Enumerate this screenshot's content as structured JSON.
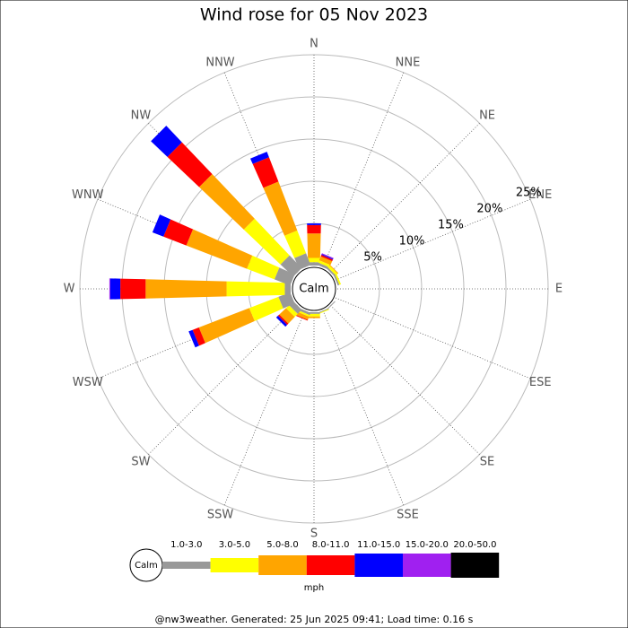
{
  "chart_data": {
    "type": "wind-rose",
    "title": "Wind rose for 05 Nov 2023",
    "categories": [
      "N",
      "NNE",
      "NE",
      "ENE",
      "E",
      "ESE",
      "SE",
      "SSE",
      "S",
      "SSW",
      "SW",
      "WSW",
      "W",
      "WNW",
      "NW",
      "NNW"
    ],
    "series": [
      {
        "name": "1.0-3.0",
        "color": "#999999",
        "values": [
          0.4,
          0.3,
          0.2,
          0.2,
          0,
          0,
          0.1,
          0.1,
          0.2,
          0.3,
          0.7,
          1.5,
          0.7,
          2.0,
          2.1,
          1.5
        ]
      },
      {
        "name": "3.0-5.0",
        "color": "#ffff00",
        "values": [
          0.5,
          0.3,
          0.3,
          0.2,
          0,
          0,
          0,
          0.1,
          0.3,
          0.2,
          0.5,
          3.7,
          6.9,
          3.5,
          6.0,
          2.9
        ]
      },
      {
        "name": "5.0-8.0",
        "color": "#ffa500",
        "values": [
          2.9,
          0.5,
          0.1,
          0,
          0,
          0,
          0,
          0,
          0.2,
          0.4,
          1.1,
          6.4,
          9.6,
          7.7,
          7.3,
          6.2
        ]
      },
      {
        "name": "8.0-11.0",
        "color": "#ff0000",
        "values": [
          1.0,
          0.2,
          0,
          0,
          0,
          0,
          0,
          0,
          0,
          0.1,
          0.2,
          0.8,
          3.0,
          2.9,
          5.2,
          3.1
        ]
      },
      {
        "name": "11.0-15.0",
        "color": "#0000ff",
        "values": [
          0.2,
          0.1,
          0,
          0,
          0,
          0,
          0,
          0,
          0,
          0,
          0.3,
          0.5,
          1.2,
          1.4,
          2.7,
          0.7
        ]
      },
      {
        "name": "15.0-20.0",
        "color": "#a020f0",
        "values": [
          0,
          0.1,
          0,
          0,
          0,
          0,
          0,
          0,
          0,
          0,
          0,
          0,
          0.1,
          0,
          0,
          0
        ]
      },
      {
        "name": "20.0-50.0",
        "color": "#000000",
        "values": [
          0,
          0,
          0,
          0,
          0,
          0,
          0,
          0,
          0,
          0,
          0,
          0,
          0,
          0,
          0,
          0
        ]
      }
    ],
    "rlim": [
      0,
      25
    ],
    "rticks": [
      {
        "value": 5,
        "label": "5%"
      },
      {
        "value": 10,
        "label": "10%"
      },
      {
        "value": 15,
        "label": "15%"
      },
      {
        "value": 20,
        "label": "20%"
      },
      {
        "value": 25,
        "label": "25%"
      }
    ],
    "center_label": "Calm",
    "unit": "mph"
  },
  "footer": "@nw3weather. Generated: 25 Jun 2025 09:41; Load time: 0.16 s"
}
